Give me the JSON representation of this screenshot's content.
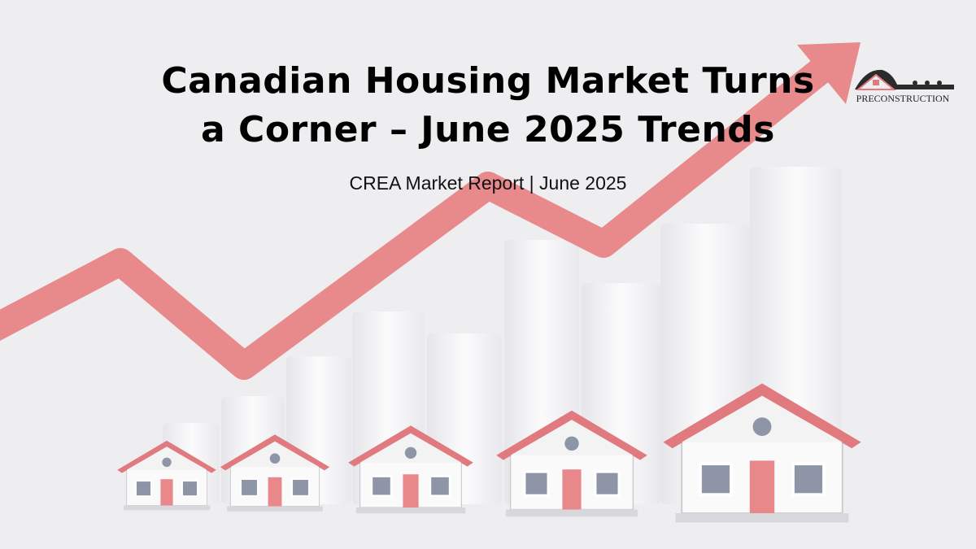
{
  "title_line1": "Canadian Housing Market Turns",
  "title_line2": "a Corner – June 2025 Trends",
  "subtitle": "CREA Market Report | June 2025",
  "logo": {
    "text": "PRECONSTRUCTION"
  },
  "colors": {
    "background": "#eeeef1",
    "arrow": "#e8898b",
    "roof": "#e07a7f",
    "bars": "#f7f7f9",
    "text": "#000000"
  }
}
